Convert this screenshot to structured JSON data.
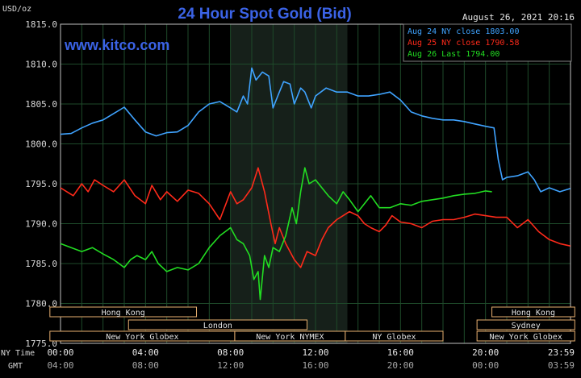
{
  "header": {
    "unit": "USD/oz",
    "title": "24 Hour Spot Gold (Bid)",
    "datetime": "August 26, 2021 20:16",
    "brand": "www.kitco.com"
  },
  "colors": {
    "background": "#000000",
    "title": "#3b63e6",
    "brand": "#3b63e6",
    "grid": "#1e4a2a",
    "ny_session_shade": "#16201a",
    "aug24": "#3fa3ff",
    "aug25": "#ff2a1a",
    "aug26": "#22dd22",
    "session_box": "#e8b070",
    "axis_text": "#d8d8d8"
  },
  "chart_data": {
    "type": "line",
    "title": "24 Hour Spot Gold (Bid)",
    "ylabel": "USD/oz",
    "ylim": [
      1775,
      1815
    ],
    "yticks": [
      "1815.0",
      "1810.0",
      "1805.0",
      "1800.0",
      "1795.0",
      "1790.0",
      "1785.0",
      "1780.0",
      "1775.0"
    ],
    "xlim": [
      0,
      24
    ],
    "xticks_ny": [
      "00:00",
      "04:00",
      "08:00",
      "12:00",
      "16:00",
      "20:00",
      "23:59"
    ],
    "xticks_gmt": [
      "04:00",
      "08:00",
      "12:00",
      "16:00",
      "20:00",
      "00:00",
      "03:59"
    ],
    "x_row_label_ny": "NY Time",
    "x_row_label_gmt": "GMT",
    "legend_position": "top-right",
    "series": [
      {
        "name": "Aug 24 NY close 1803.00",
        "color": "#3fa3ff",
        "points": [
          [
            0,
            1801.2
          ],
          [
            0.5,
            1801.3
          ],
          [
            1.0,
            1802.0
          ],
          [
            1.5,
            1802.6
          ],
          [
            2.0,
            1803.0
          ],
          [
            2.5,
            1803.8
          ],
          [
            3.0,
            1804.6
          ],
          [
            3.5,
            1803.0
          ],
          [
            4.0,
            1801.5
          ],
          [
            4.5,
            1801.0
          ],
          [
            5.0,
            1801.4
          ],
          [
            5.5,
            1801.5
          ],
          [
            6.0,
            1802.3
          ],
          [
            6.5,
            1804.0
          ],
          [
            7.0,
            1805.0
          ],
          [
            7.5,
            1805.3
          ],
          [
            8.0,
            1804.5
          ],
          [
            8.3,
            1804.0
          ],
          [
            8.6,
            1806.0
          ],
          [
            8.8,
            1805.0
          ],
          [
            9.0,
            1809.5
          ],
          [
            9.2,
            1808.0
          ],
          [
            9.5,
            1809.0
          ],
          [
            9.8,
            1808.5
          ],
          [
            10.0,
            1804.5
          ],
          [
            10.3,
            1806.5
          ],
          [
            10.5,
            1807.8
          ],
          [
            10.8,
            1807.5
          ],
          [
            11.0,
            1805.0
          ],
          [
            11.3,
            1807.0
          ],
          [
            11.5,
            1806.5
          ],
          [
            11.8,
            1804.5
          ],
          [
            12.0,
            1806.0
          ],
          [
            12.5,
            1807.0
          ],
          [
            13.0,
            1806.5
          ],
          [
            13.5,
            1806.5
          ],
          [
            14.0,
            1806.0
          ],
          [
            14.5,
            1806.0
          ],
          [
            15.0,
            1806.2
          ],
          [
            15.5,
            1806.5
          ],
          [
            16.0,
            1805.5
          ],
          [
            16.5,
            1804.0
          ],
          [
            17.0,
            1803.5
          ],
          [
            17.5,
            1803.2
          ],
          [
            18.0,
            1803.0
          ],
          [
            18.5,
            1803.0
          ],
          [
            19.0,
            1802.8
          ],
          [
            19.5,
            1802.5
          ],
          [
            20.0,
            1802.2
          ],
          [
            20.4,
            1802.0
          ],
          [
            20.6,
            1798.0
          ],
          [
            20.8,
            1795.5
          ],
          [
            21.0,
            1795.8
          ],
          [
            21.5,
            1796.0
          ],
          [
            22.0,
            1796.5
          ],
          [
            22.3,
            1795.5
          ],
          [
            22.6,
            1794.0
          ],
          [
            23.0,
            1794.5
          ],
          [
            23.5,
            1794.0
          ],
          [
            23.99,
            1794.4
          ]
        ]
      },
      {
        "name": "Aug 25 NY close 1790.58",
        "color": "#ff2a1a",
        "points": [
          [
            0,
            1794.5
          ],
          [
            0.3,
            1794.0
          ],
          [
            0.6,
            1793.5
          ],
          [
            1.0,
            1795.0
          ],
          [
            1.3,
            1794.0
          ],
          [
            1.6,
            1795.5
          ],
          [
            2.0,
            1794.8
          ],
          [
            2.5,
            1794.0
          ],
          [
            3.0,
            1795.5
          ],
          [
            3.5,
            1793.5
          ],
          [
            4.0,
            1792.5
          ],
          [
            4.3,
            1794.8
          ],
          [
            4.7,
            1793.0
          ],
          [
            5.0,
            1794.0
          ],
          [
            5.5,
            1792.8
          ],
          [
            6.0,
            1794.2
          ],
          [
            6.5,
            1793.8
          ],
          [
            7.0,
            1792.5
          ],
          [
            7.5,
            1790.5
          ],
          [
            8.0,
            1794.0
          ],
          [
            8.3,
            1792.5
          ],
          [
            8.6,
            1793.0
          ],
          [
            9.0,
            1794.5
          ],
          [
            9.3,
            1797.0
          ],
          [
            9.6,
            1794.0
          ],
          [
            9.9,
            1790.0
          ],
          [
            10.1,
            1787.5
          ],
          [
            10.3,
            1789.5
          ],
          [
            10.6,
            1787.5
          ],
          [
            11.0,
            1785.5
          ],
          [
            11.3,
            1784.5
          ],
          [
            11.6,
            1786.5
          ],
          [
            12.0,
            1786.0
          ],
          [
            12.3,
            1788.0
          ],
          [
            12.6,
            1789.5
          ],
          [
            13.0,
            1790.5
          ],
          [
            13.3,
            1791.0
          ],
          [
            13.6,
            1791.5
          ],
          [
            14.0,
            1791.0
          ],
          [
            14.3,
            1790.0
          ],
          [
            14.6,
            1789.5
          ],
          [
            15.0,
            1789.0
          ],
          [
            15.3,
            1789.8
          ],
          [
            15.6,
            1791.0
          ],
          [
            16.0,
            1790.2
          ],
          [
            16.5,
            1790.0
          ],
          [
            17.0,
            1789.5
          ],
          [
            17.5,
            1790.3
          ],
          [
            18.0,
            1790.5
          ],
          [
            18.5,
            1790.5
          ],
          [
            19.0,
            1790.8
          ],
          [
            19.5,
            1791.2
          ],
          [
            20.0,
            1791.0
          ],
          [
            20.5,
            1790.8
          ],
          [
            21.0,
            1790.8
          ],
          [
            21.5,
            1789.5
          ],
          [
            22.0,
            1790.5
          ],
          [
            22.5,
            1789.0
          ],
          [
            23.0,
            1788.0
          ],
          [
            23.5,
            1787.5
          ],
          [
            23.99,
            1787.2
          ]
        ]
      },
      {
        "name": "Aug 26 Last 1794.00",
        "color": "#22dd22",
        "points": [
          [
            0,
            1787.5
          ],
          [
            0.5,
            1787.0
          ],
          [
            1.0,
            1786.5
          ],
          [
            1.5,
            1787.0
          ],
          [
            2.0,
            1786.2
          ],
          [
            2.5,
            1785.5
          ],
          [
            3.0,
            1784.5
          ],
          [
            3.3,
            1785.5
          ],
          [
            3.6,
            1786.0
          ],
          [
            4.0,
            1785.5
          ],
          [
            4.3,
            1786.5
          ],
          [
            4.6,
            1785.0
          ],
          [
            5.0,
            1784.0
          ],
          [
            5.5,
            1784.5
          ],
          [
            6.0,
            1784.2
          ],
          [
            6.5,
            1785.0
          ],
          [
            7.0,
            1787.0
          ],
          [
            7.5,
            1788.5
          ],
          [
            8.0,
            1789.5
          ],
          [
            8.3,
            1788.0
          ],
          [
            8.6,
            1787.5
          ],
          [
            8.9,
            1786.0
          ],
          [
            9.1,
            1783.0
          ],
          [
            9.3,
            1784.0
          ],
          [
            9.4,
            1780.5
          ],
          [
            9.6,
            1786.0
          ],
          [
            9.8,
            1784.5
          ],
          [
            10.0,
            1787.0
          ],
          [
            10.3,
            1786.5
          ],
          [
            10.6,
            1788.5
          ],
          [
            10.9,
            1792.0
          ],
          [
            11.1,
            1790.0
          ],
          [
            11.3,
            1794.0
          ],
          [
            11.5,
            1797.0
          ],
          [
            11.7,
            1795.0
          ],
          [
            12.0,
            1795.5
          ],
          [
            12.3,
            1794.5
          ],
          [
            12.6,
            1793.5
          ],
          [
            13.0,
            1792.5
          ],
          [
            13.3,
            1794.0
          ],
          [
            13.6,
            1793.0
          ],
          [
            14.0,
            1791.5
          ],
          [
            14.3,
            1792.5
          ],
          [
            14.6,
            1793.5
          ],
          [
            15.0,
            1792.0
          ],
          [
            15.5,
            1792.0
          ],
          [
            16.0,
            1792.5
          ],
          [
            16.5,
            1792.3
          ],
          [
            17.0,
            1792.8
          ],
          [
            17.5,
            1793.0
          ],
          [
            18.0,
            1793.2
          ],
          [
            18.5,
            1793.5
          ],
          [
            19.0,
            1793.7
          ],
          [
            19.5,
            1793.8
          ],
          [
            20.0,
            1794.1
          ],
          [
            20.3,
            1794.0
          ]
        ]
      }
    ]
  },
  "sessions": [
    {
      "id": "hongkong-1",
      "label": "Hong Kong",
      "row": 1,
      "start": -0.5,
      "end": 6.4
    },
    {
      "id": "hongkong-2",
      "label": "Hong Kong",
      "row": 1,
      "start": 20.3,
      "end": 24.2
    },
    {
      "id": "london",
      "label": "London",
      "row": 2,
      "start": 3.2,
      "end": 11.6
    },
    {
      "id": "sydney",
      "label": "Sydney",
      "row": 2,
      "start": 19.6,
      "end": 24.2
    },
    {
      "id": "newyork-globex-1",
      "label": "New York Globex",
      "row": 3,
      "start": -0.5,
      "end": 8.2
    },
    {
      "id": "newyork-nymex",
      "label": "New York NYMEX",
      "row": 3,
      "start": 8.2,
      "end": 13.4
    },
    {
      "id": "ny-globex",
      "label": "NY Globex",
      "row": 3,
      "start": 13.4,
      "end": 18.0
    },
    {
      "id": "newyork-globex-2",
      "label": "New York Globex",
      "row": 3,
      "start": 19.6,
      "end": 24.2
    }
  ],
  "ny_session_shade": {
    "start": 8.0,
    "end": 13.5
  }
}
